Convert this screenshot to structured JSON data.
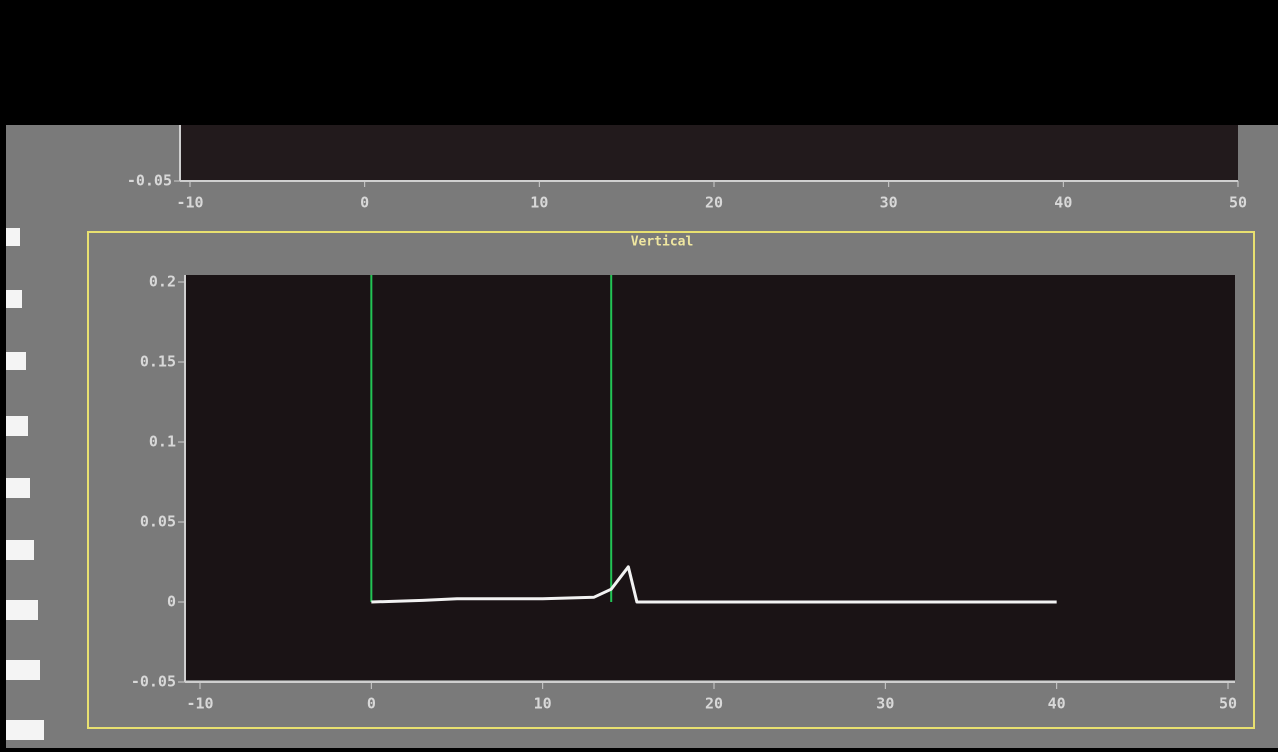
{
  "chart_data": [
    {
      "type": "line",
      "xlim": [
        -10,
        50
      ],
      "xticks": [
        -10,
        0,
        10,
        20,
        30,
        40,
        50
      ],
      "yticks": [
        -0.05
      ]
    },
    {
      "type": "line",
      "title": "Vertical",
      "x": [
        0,
        3,
        5,
        10,
        13,
        14,
        15,
        15.5,
        16,
        20,
        30,
        40
      ],
      "series": [
        {
          "color": "#f2f2f2",
          "values": [
            0,
            0.001,
            0.002,
            0.002,
            0.003,
            0.008,
            0.022,
            0,
            0,
            0,
            0,
            0
          ]
        }
      ],
      "vlines": [
        {
          "x": 0,
          "color": "#22c455"
        },
        {
          "x": 14,
          "color": "#22c455"
        }
      ],
      "xlim": [
        -10,
        50
      ],
      "xticks": [
        -10,
        0,
        10,
        20,
        30,
        40,
        50
      ],
      "ylim": [
        -0.05,
        0.2
      ],
      "yticks": [
        -0.05,
        0,
        0.05,
        0.1,
        0.15,
        0.2
      ],
      "frame_color": "#e8e070"
    }
  ]
}
